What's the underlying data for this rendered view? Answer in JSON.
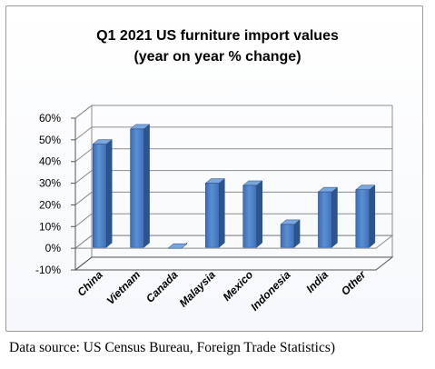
{
  "chart_data": {
    "type": "bar",
    "title": "Q1 2021 US furniture import values",
    "subtitle": "(year on year % change)",
    "categories": [
      "China",
      "Vietnam",
      "Canada",
      "Malaysia",
      "Mexico",
      "Indonesia",
      "India",
      "Other"
    ],
    "values": [
      48,
      55,
      0,
      30,
      29,
      11,
      26,
      27
    ],
    "y_ticks": [
      "-10%",
      "0%",
      "10%",
      "20%",
      "30%",
      "40%",
      "50%",
      "60%"
    ],
    "ylim": [
      -10,
      60
    ],
    "grid": true,
    "legend": "none",
    "style": "3d-column",
    "bar_color": "#4a7ec3"
  },
  "source_note": "Data source: US Census Bureau, Foreign Trade Statistics)"
}
